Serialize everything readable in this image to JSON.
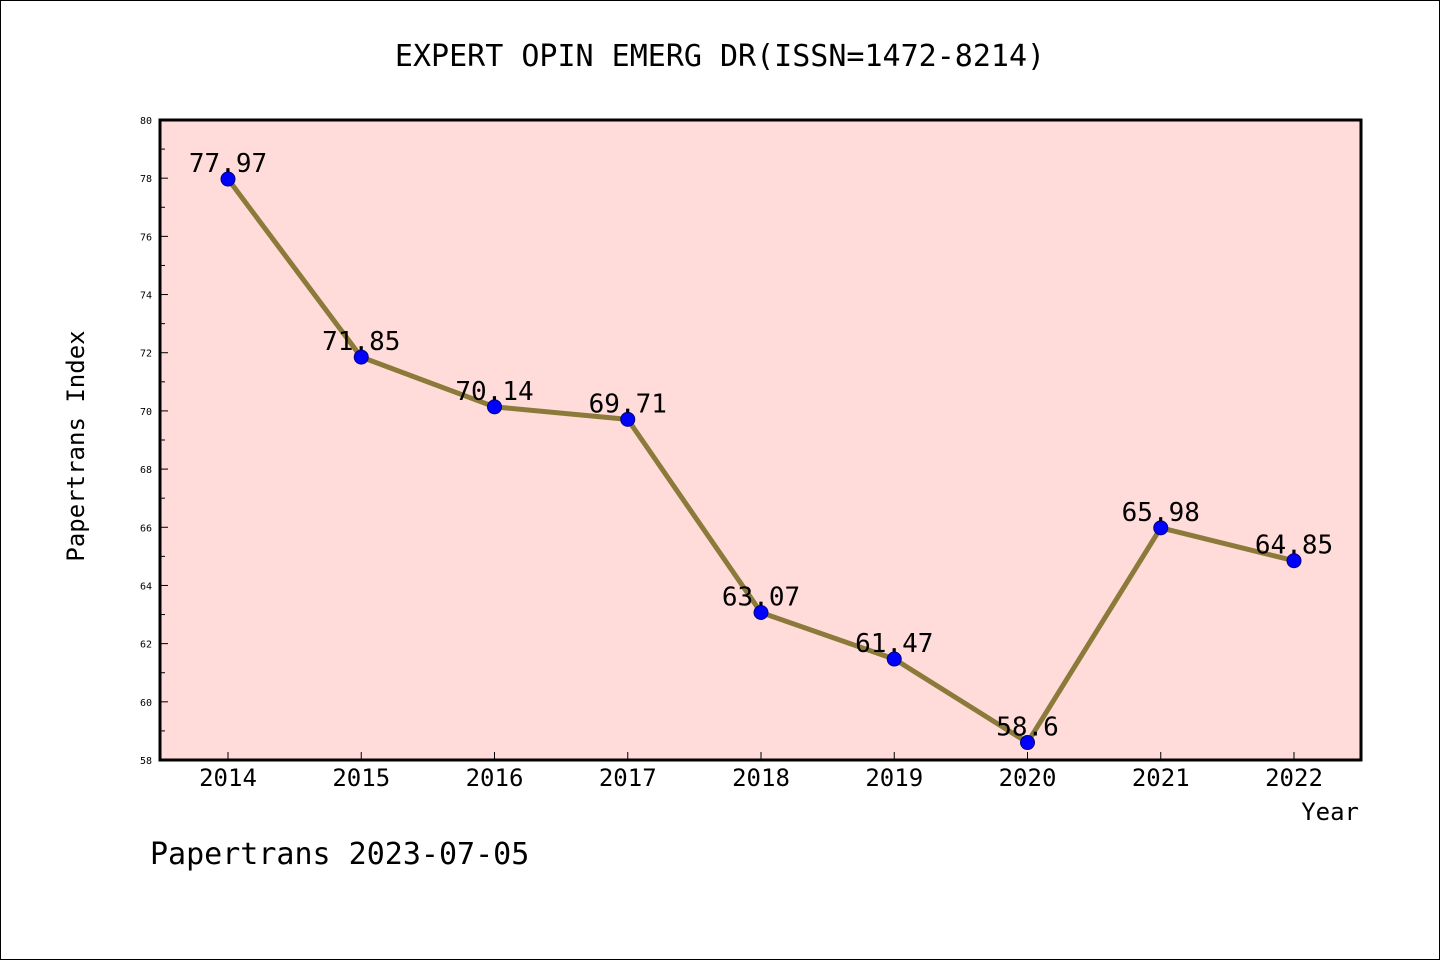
{
  "chart_data": {
    "type": "line",
    "title": "EXPERT OPIN EMERG DR(ISSN=1472-8214)",
    "xlabel": "Year",
    "ylabel": "Papertrans Index",
    "categories": [
      "2014",
      "2015",
      "2016",
      "2017",
      "2018",
      "2019",
      "2020",
      "2021",
      "2022"
    ],
    "values": [
      77.97,
      71.85,
      70.14,
      69.71,
      63.07,
      61.47,
      58.6,
      65.98,
      64.85
    ],
    "data_labels": [
      "77.97",
      "71.85",
      "70.14",
      "69.71",
      "63.07",
      "61.47",
      "58.6",
      "65.98",
      "64.85"
    ],
    "ylim": [
      58,
      80
    ],
    "yticks": [
      58,
      60,
      62,
      64,
      66,
      68,
      70,
      72,
      74,
      76,
      78,
      80
    ],
    "ytick_labels": [
      "58",
      "60",
      "62",
      "64",
      "66",
      "68",
      "70",
      "72",
      "74",
      "76",
      "78",
      "80"
    ],
    "grid": false,
    "legend": "none",
    "colors": {
      "plot_background": "#ffdcd9",
      "line": "#8c7a3a",
      "marker_fill": "#0000ff",
      "marker_edge": "#000080"
    }
  },
  "footer": "Papertrans 2023-07-05"
}
